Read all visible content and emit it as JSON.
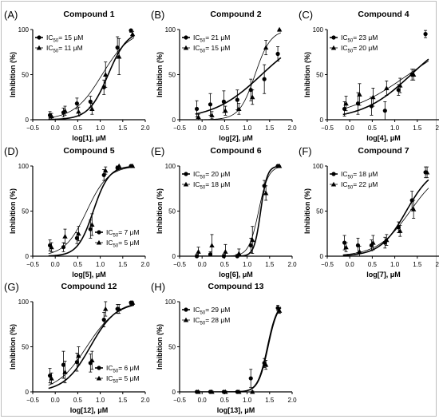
{
  "chart_data": [
    {
      "panel": "(A)",
      "title": "Compound 1",
      "type": "scatter",
      "xlabel": "log[1], μM",
      "ylabel": "Inhibition (%)",
      "xlim": [
        -0.5,
        2.0
      ],
      "ylim": [
        0,
        100
      ],
      "xticks": [
        "−0.5",
        "0.0",
        "0.5",
        "1.0",
        "1.5",
        "2.0"
      ],
      "yticks": [
        "0",
        "50",
        "100"
      ],
      "legend_position": "top-left",
      "series": [
        {
          "name": "IC50= 15 μM",
          "marker": "circle",
          "ic50": 15,
          "hill": 2.0,
          "x": [
            -0.1,
            0.2,
            0.5,
            0.8,
            1.1,
            1.4,
            1.7
          ],
          "y": [
            5,
            8,
            18,
            20,
            36,
            80,
            99
          ],
          "err": [
            4,
            5,
            6,
            6,
            8,
            12,
            2
          ]
        },
        {
          "name": "IC50= 11 μM",
          "marker": "triangle",
          "ic50": 11,
          "hill": 1.4,
          "x": [
            -0.1,
            0.2,
            0.5,
            0.8,
            1.1,
            1.4,
            1.7
          ],
          "y": [
            4,
            10,
            9,
            12,
            50,
            70,
            95
          ],
          "err": [
            3,
            5,
            5,
            6,
            14,
            20,
            3
          ]
        }
      ]
    },
    {
      "panel": "(B)",
      "title": "Compound 2",
      "type": "scatter",
      "xlabel": "log[2], μM",
      "ylabel": "Inhibition (%)",
      "xlim": [
        -0.5,
        2.0
      ],
      "ylim": [
        0,
        100
      ],
      "xticks": [
        "−0.5",
        "0.0",
        "0.5",
        "1.0",
        "1.5",
        "2.0"
      ],
      "yticks": [
        "0",
        "50",
        "100"
      ],
      "legend_position": "top-left",
      "series": [
        {
          "name": "IC50= 21 μM",
          "marker": "circle",
          "ic50": 21,
          "hill": 0.8,
          "x": [
            -0.1,
            0.2,
            0.5,
            0.8,
            1.1,
            1.4,
            1.7
          ],
          "y": [
            12,
            17,
            20,
            22,
            33,
            45,
            73
          ],
          "err": [
            9,
            12,
            12,
            11,
            12,
            16,
            8
          ]
        },
        {
          "name": "IC50= 15 μM",
          "marker": "triangle",
          "ic50": 15,
          "hill": 2.5,
          "x": [
            -0.1,
            0.2,
            0.5,
            0.8,
            1.1,
            1.4,
            1.7
          ],
          "y": [
            3,
            5,
            10,
            12,
            25,
            80,
            100
          ],
          "err": [
            3,
            4,
            5,
            6,
            8,
            8,
            2
          ]
        }
      ]
    },
    {
      "panel": "(C)",
      "title": "Compound 4",
      "type": "scatter",
      "xlabel": "log[4], μM",
      "ylabel": "Inhibition (%)",
      "xlim": [
        -0.5,
        2.0
      ],
      "ylim": [
        0,
        100
      ],
      "xticks": [
        "−0.5",
        "0.0",
        "0.5",
        "1.0",
        "1.5",
        "2.0"
      ],
      "yticks": [
        "0",
        "50",
        "100"
      ],
      "legend_position": "top-left",
      "series": [
        {
          "name": "IC50= 23 μM",
          "marker": "circle",
          "ic50": 23,
          "hill": 0.8,
          "x": [
            -0.1,
            0.2,
            0.5,
            0.8,
            1.1,
            1.4,
            1.7
          ],
          "y": [
            12,
            18,
            15,
            10,
            33,
            50,
            95
          ],
          "err": [
            8,
            12,
            10,
            10,
            6,
            6,
            4
          ]
        },
        {
          "name": "IC50= 20 μM",
          "marker": "triangle",
          "ic50": 20,
          "hill": 0.6,
          "x": [
            -0.1,
            0.2,
            0.5,
            0.8,
            1.1,
            1.4
          ],
          "y": [
            18,
            28,
            25,
            35,
            38,
            50
          ],
          "err": [
            8,
            12,
            10,
            8,
            8,
            6
          ]
        }
      ]
    },
    {
      "panel": "(D)",
      "title": "Compound 5",
      "type": "scatter",
      "xlabel": "log[5], μM",
      "ylabel": "Inhibition (%)",
      "xlim": [
        -0.5,
        2.0
      ],
      "ylim": [
        0,
        100
      ],
      "xticks": [
        "−0.5",
        "0.0",
        "0.5",
        "1.0",
        "1.5",
        "2.0"
      ],
      "yticks": [
        "0",
        "50",
        "100"
      ],
      "legend_position": "bottom-right",
      "series": [
        {
          "name": "IC50= 7 μM",
          "marker": "circle",
          "ic50": 7,
          "hill": 2.5,
          "x": [
            -0.1,
            0.2,
            0.5,
            0.8,
            1.1,
            1.4,
            1.7
          ],
          "y": [
            12,
            10,
            20,
            30,
            90,
            98,
            100
          ],
          "err": [
            6,
            5,
            6,
            10,
            6,
            2,
            1
          ]
        },
        {
          "name": "IC50= 5 μM",
          "marker": "triangle",
          "ic50": 5,
          "hill": 1.8,
          "x": [
            -0.1,
            0.2,
            0.5,
            0.8,
            1.1,
            1.4,
            1.7
          ],
          "y": [
            10,
            22,
            25,
            35,
            95,
            100,
            100
          ],
          "err": [
            5,
            8,
            8,
            12,
            4,
            2,
            1
          ]
        }
      ]
    },
    {
      "panel": "(E)",
      "title": "Compound 6",
      "type": "scatter",
      "xlabel": "log[6], μM",
      "ylabel": "Inhibition (%)",
      "xlim": [
        -0.5,
        2.0
      ],
      "ylim": [
        0,
        100
      ],
      "xticks": [
        "−0.5",
        "0.0",
        "0.5",
        "1.0",
        "1.5",
        "2.0"
      ],
      "yticks": [
        "0",
        "50",
        "100"
      ],
      "legend_position": "top-left",
      "series": [
        {
          "name": "IC50= 20 μM",
          "marker": "circle",
          "ic50": 20,
          "hill": 6,
          "x": [
            -0.1,
            0.2,
            0.5,
            0.8,
            1.1,
            1.4,
            1.7
          ],
          "y": [
            0,
            2,
            0,
            0,
            12,
            78,
            100
          ],
          "err": [
            2,
            3,
            2,
            2,
            8,
            6,
            1
          ]
        },
        {
          "name": "IC50= 18 μM",
          "marker": "triangle",
          "ic50": 18,
          "hill": 4,
          "x": [
            -0.1,
            0.2,
            0.5,
            0.8,
            1.1,
            1.4,
            1.7
          ],
          "y": [
            5,
            12,
            5,
            3,
            18,
            70,
            100
          ],
          "err": [
            5,
            12,
            8,
            5,
            15,
            8,
            1
          ]
        }
      ]
    },
    {
      "panel": "(F)",
      "title": "Compound 7",
      "type": "scatter",
      "xlabel": "log[7], μM",
      "ylabel": "Inhibition (%)",
      "xlim": [
        -0.5,
        2.0
      ],
      "ylim": [
        0,
        100
      ],
      "xticks": [
        "−0.5",
        "0.0",
        "0.5",
        "1.0",
        "1.5",
        "2.0"
      ],
      "yticks": [
        "0",
        "50",
        "100"
      ],
      "legend_position": "top-left",
      "series": [
        {
          "name": "IC50= 18 μM",
          "marker": "circle",
          "ic50": 18,
          "hill": 1.5,
          "x": [
            -0.1,
            0.2,
            0.5,
            0.8,
            1.1,
            1.4,
            1.7
          ],
          "y": [
            15,
            12,
            12,
            15,
            32,
            62,
            93
          ],
          "err": [
            8,
            8,
            6,
            6,
            6,
            10,
            6
          ]
        },
        {
          "name": "IC50= 22 μM",
          "marker": "triangle",
          "ic50": 22,
          "hill": 1.2,
          "x": [
            -0.1,
            0.2,
            0.5,
            0.8,
            1.1,
            1.4,
            1.7
          ],
          "y": [
            10,
            5,
            15,
            18,
            28,
            52,
            93
          ],
          "err": [
            5,
            6,
            8,
            6,
            6,
            10,
            6
          ]
        }
      ]
    },
    {
      "panel": "(G)",
      "title": "Compound 12",
      "type": "scatter",
      "xlabel": "log[12], μM",
      "ylabel": "Inhibition (%)",
      "xlim": [
        -0.5,
        2.0
      ],
      "ylim": [
        0,
        100
      ],
      "xticks": [
        "−0.5",
        "0.0",
        "0.5",
        "1.0",
        "1.5",
        "2.0"
      ],
      "yticks": [
        "0",
        "50",
        "100"
      ],
      "legend_position": "bottom-right",
      "series": [
        {
          "name": "IC50= 6 μM",
          "marker": "circle",
          "ic50": 6,
          "hill": 1.5,
          "x": [
            -0.1,
            0.2,
            0.5,
            0.8,
            1.1,
            1.4,
            1.7
          ],
          "y": [
            18,
            30,
            33,
            32,
            80,
            92,
            99
          ],
          "err": [
            8,
            15,
            10,
            10,
            8,
            5,
            2
          ]
        },
        {
          "name": "IC50= 5 μM",
          "marker": "triangle",
          "ic50": 5,
          "hill": 1.3,
          "x": [
            -0.1,
            0.2,
            0.5,
            0.8,
            1.1,
            1.4,
            1.7
          ],
          "y": [
            15,
            22,
            40,
            35,
            92,
            92,
            99
          ],
          "err": [
            6,
            12,
            10,
            10,
            8,
            5,
            2
          ]
        }
      ]
    },
    {
      "panel": "(H)",
      "title": "Compound 13",
      "type": "scatter",
      "xlabel": "log[13], μM",
      "ylabel": "Inhibition (%)",
      "xlim": [
        -0.5,
        2.0
      ],
      "ylim": [
        0,
        100
      ],
      "xticks": [
        "−0.5",
        "0.0",
        "0.5",
        "1.0",
        "1.5",
        "2.0"
      ],
      "yticks": [
        "0",
        "50",
        "100"
      ],
      "legend_position": "top-left",
      "series": [
        {
          "name": "IC50= 29 μM",
          "marker": "circle",
          "ic50": 29,
          "hill": 4,
          "x": [
            -0.1,
            0.2,
            0.5,
            0.8,
            1.1,
            1.4,
            1.7
          ],
          "y": [
            0,
            0,
            0,
            0,
            15,
            32,
            93
          ],
          "err": [
            1,
            1,
            1,
            1,
            10,
            5,
            3
          ]
        },
        {
          "name": "IC50= 28 μM",
          "marker": "triangle",
          "ic50": 28,
          "hill": 4,
          "x": [
            -0.1,
            0.2,
            0.5,
            0.8,
            1.1,
            1.4,
            1.7
          ],
          "y": [
            0,
            0,
            0,
            0,
            0,
            30,
            90
          ],
          "err": [
            1,
            1,
            1,
            1,
            1,
            5,
            3
          ]
        }
      ]
    }
  ]
}
